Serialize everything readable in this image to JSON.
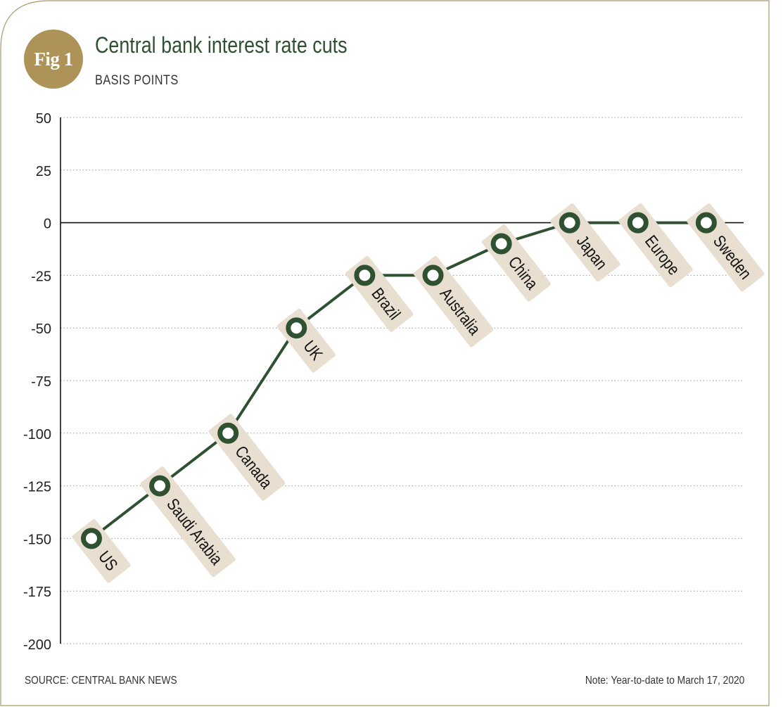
{
  "figure": {
    "badge": "Fig 1",
    "title": "Central bank interest rate cuts",
    "subtitle": "BASIS POINTS",
    "source": "SOURCE: CENTRAL BANK NEWS",
    "note": "Note: Year-to-date to March 17, 2020"
  },
  "colors": {
    "line": "#2f5132",
    "marker_ring": "#2f5132",
    "label_bg": "#e8dfd1",
    "badge": "#ad9357",
    "frame": "#a89968"
  },
  "chart_data": {
    "type": "line",
    "title": "Central bank interest rate cuts",
    "ylabel": "BASIS POINTS",
    "xlabel": "",
    "ylim": [
      -200,
      50
    ],
    "yticks": [
      50,
      25,
      0,
      -25,
      -50,
      -75,
      -100,
      -125,
      -150,
      -175,
      -200
    ],
    "grid": true,
    "categories": [
      "US",
      "Saudi Arabia",
      "Canada",
      "UK",
      "Brazil",
      "Australia",
      "China",
      "Japan",
      "Europe",
      "Sweden"
    ],
    "values": [
      -150,
      -125,
      -100,
      -50,
      -25,
      -25,
      -10,
      0,
      0,
      0
    ]
  }
}
